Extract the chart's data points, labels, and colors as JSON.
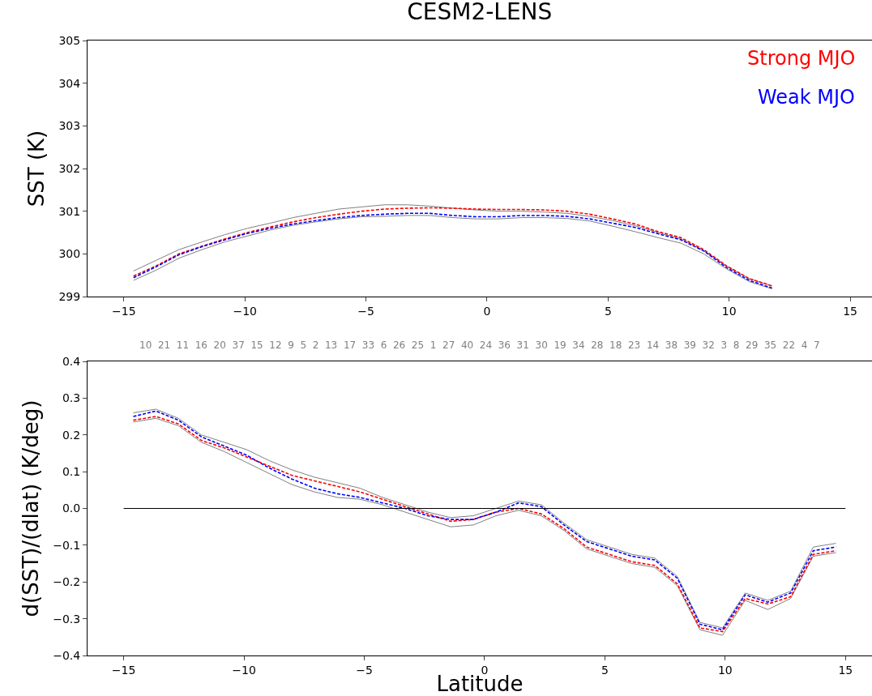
{
  "chart_data": [
    {
      "type": "line",
      "title": "CESM2-LENS",
      "ylabel": "SST (K)",
      "legend": "top right",
      "grid": false,
      "x": [
        -14.6,
        -13.66,
        -12.72,
        -11.77,
        -10.83,
        -9.89,
        -8.95,
        -8.01,
        -7.07,
        -6.12,
        -5.18,
        -4.24,
        -3.3,
        -2.36,
        -1.41,
        -0.47,
        0.47,
        1.41,
        2.36,
        3.3,
        4.24,
        5.18,
        6.12,
        7.07,
        8.01,
        8.95,
        9.89,
        10.83,
        11.77
      ],
      "xlim": [
        -16.5,
        15.9
      ],
      "xticks": [
        {
          "value": -15,
          "label": "−15"
        },
        {
          "value": -10,
          "label": "−10"
        },
        {
          "value": -5,
          "label": "−5"
        },
        0,
        5,
        10,
        15
      ],
      "ylim": [
        299,
        305
      ],
      "yticks": [
        299,
        300,
        301,
        302,
        303,
        304,
        305
      ],
      "annotations": [
        "10 21 11 16 20 37 15 12 9 5 2 13 17 33 6 26 25 1 27 40 24 36 31 30 19 34 28 18 23 14 38 39 32 3 8 29 35 22 4 7"
      ],
      "series": [
        {
          "color": "#808080",
          "line_style": "solid",
          "values": [
            299.6,
            299.85,
            300.1,
            300.28,
            300.45,
            300.6,
            300.72,
            300.85,
            300.95,
            301.05,
            301.1,
            301.15,
            301.15,
            301.12,
            301.07,
            301.03,
            301.0,
            301.0,
            300.98,
            300.95,
            300.88,
            300.78,
            300.66,
            300.5,
            300.35,
            300.07,
            299.72,
            299.42,
            299.25
          ]
        },
        {
          "color": "#808080",
          "line_style": "solid",
          "values": [
            299.38,
            299.62,
            299.9,
            300.1,
            300.28,
            300.42,
            300.56,
            300.67,
            300.75,
            300.82,
            300.87,
            300.88,
            300.9,
            300.9,
            300.85,
            300.82,
            300.82,
            300.85,
            300.85,
            300.83,
            300.77,
            300.65,
            300.52,
            300.38,
            300.25,
            300.0,
            299.65,
            299.35,
            299.18
          ]
        },
        {
          "name": "Strong MJO",
          "color": "#ff0000",
          "line_style": "dashed",
          "values": [
            299.48,
            299.72,
            300.0,
            300.18,
            300.35,
            300.5,
            300.63,
            300.75,
            300.85,
            300.93,
            301.0,
            301.05,
            301.07,
            301.08,
            301.07,
            301.05,
            301.04,
            301.04,
            301.03,
            301.0,
            300.93,
            300.82,
            300.7,
            300.52,
            300.38,
            300.1,
            299.72,
            299.42,
            299.25
          ]
        },
        {
          "name": "Weak MJO",
          "color": "#0000ff",
          "line_style": "dashed",
          "values": [
            299.44,
            299.7,
            299.98,
            300.17,
            300.33,
            300.48,
            300.6,
            300.7,
            300.78,
            300.85,
            300.9,
            300.93,
            300.95,
            300.95,
            300.9,
            300.87,
            300.87,
            300.9,
            300.9,
            300.88,
            300.82,
            300.72,
            300.62,
            300.47,
            300.33,
            300.07,
            299.68,
            299.38,
            299.2
          ]
        }
      ]
    },
    {
      "type": "line",
      "xlabel": "Latitude",
      "ylabel": "d(SST)/(dlat) (K/deg)",
      "grid": false,
      "x": [
        -14.6,
        -13.66,
        -12.72,
        -11.77,
        -10.83,
        -9.89,
        -8.95,
        -8.01,
        -7.07,
        -6.12,
        -5.18,
        -4.24,
        -3.3,
        -2.36,
        -1.41,
        -0.47,
        0.47,
        1.41,
        2.36,
        3.3,
        4.24,
        5.18,
        6.12,
        7.07,
        8.01,
        8.95,
        9.89,
        10.83,
        11.77,
        12.72,
        13.66,
        14.6
      ],
      "xlim": [
        -16.5,
        16.1
      ],
      "xticks": [
        {
          "value": -15,
          "label": "−15"
        },
        {
          "value": -10,
          "label": "−10"
        },
        {
          "value": -5,
          "label": "−5"
        },
        0,
        5,
        10,
        15
      ],
      "ylim": [
        -0.4,
        0.4
      ],
      "yticks": [
        {
          "value": -0.4,
          "label": "−0.4"
        },
        {
          "value": -0.3,
          "label": "−0.3"
        },
        {
          "value": -0.2,
          "label": "−0.2"
        },
        {
          "value": -0.1,
          "label": "−0.1"
        },
        {
          "value": 0,
          "label": "0.0"
        },
        0.1,
        0.2,
        0.3,
        0.4
      ],
      "ref_lines": [
        {
          "axis": "y",
          "value": 0,
          "color": "#000000"
        }
      ],
      "series": [
        {
          "color": "#808080",
          "line_style": "solid",
          "values": [
            0.26,
            0.27,
            0.245,
            0.2,
            0.18,
            0.16,
            0.13,
            0.105,
            0.085,
            0.07,
            0.055,
            0.03,
            0.01,
            -0.01,
            -0.025,
            -0.02,
            0.0,
            0.02,
            0.01,
            -0.04,
            -0.085,
            -0.105,
            -0.125,
            -0.135,
            -0.185,
            -0.31,
            -0.325,
            -0.23,
            -0.25,
            -0.225,
            -0.105,
            -0.095
          ]
        },
        {
          "color": "#808080",
          "line_style": "solid",
          "values": [
            0.235,
            0.245,
            0.225,
            0.18,
            0.155,
            0.125,
            0.095,
            0.065,
            0.045,
            0.03,
            0.025,
            0.01,
            -0.01,
            -0.03,
            -0.05,
            -0.045,
            -0.02,
            -0.005,
            -0.02,
            -0.06,
            -0.11,
            -0.13,
            -0.15,
            -0.16,
            -0.21,
            -0.33,
            -0.345,
            -0.25,
            -0.275,
            -0.245,
            -0.13,
            -0.12
          ]
        },
        {
          "color": "#ff0000",
          "line_style": "dashed",
          "values": [
            0.24,
            0.25,
            0.23,
            0.185,
            0.165,
            0.14,
            0.115,
            0.09,
            0.075,
            0.06,
            0.045,
            0.025,
            0.005,
            -0.015,
            -0.035,
            -0.03,
            -0.01,
            0.0,
            -0.015,
            -0.055,
            -0.105,
            -0.125,
            -0.145,
            -0.155,
            -0.205,
            -0.325,
            -0.335,
            -0.245,
            -0.26,
            -0.24,
            -0.125,
            -0.115
          ]
        },
        {
          "color": "#0000ff",
          "line_style": "dashed",
          "values": [
            0.25,
            0.265,
            0.24,
            0.195,
            0.17,
            0.145,
            0.11,
            0.08,
            0.055,
            0.04,
            0.03,
            0.015,
            0.0,
            -0.02,
            -0.03,
            -0.03,
            -0.01,
            0.015,
            0.005,
            -0.045,
            -0.09,
            -0.11,
            -0.13,
            -0.14,
            -0.19,
            -0.315,
            -0.33,
            -0.235,
            -0.255,
            -0.23,
            -0.115,
            -0.105
          ]
        }
      ]
    }
  ]
}
